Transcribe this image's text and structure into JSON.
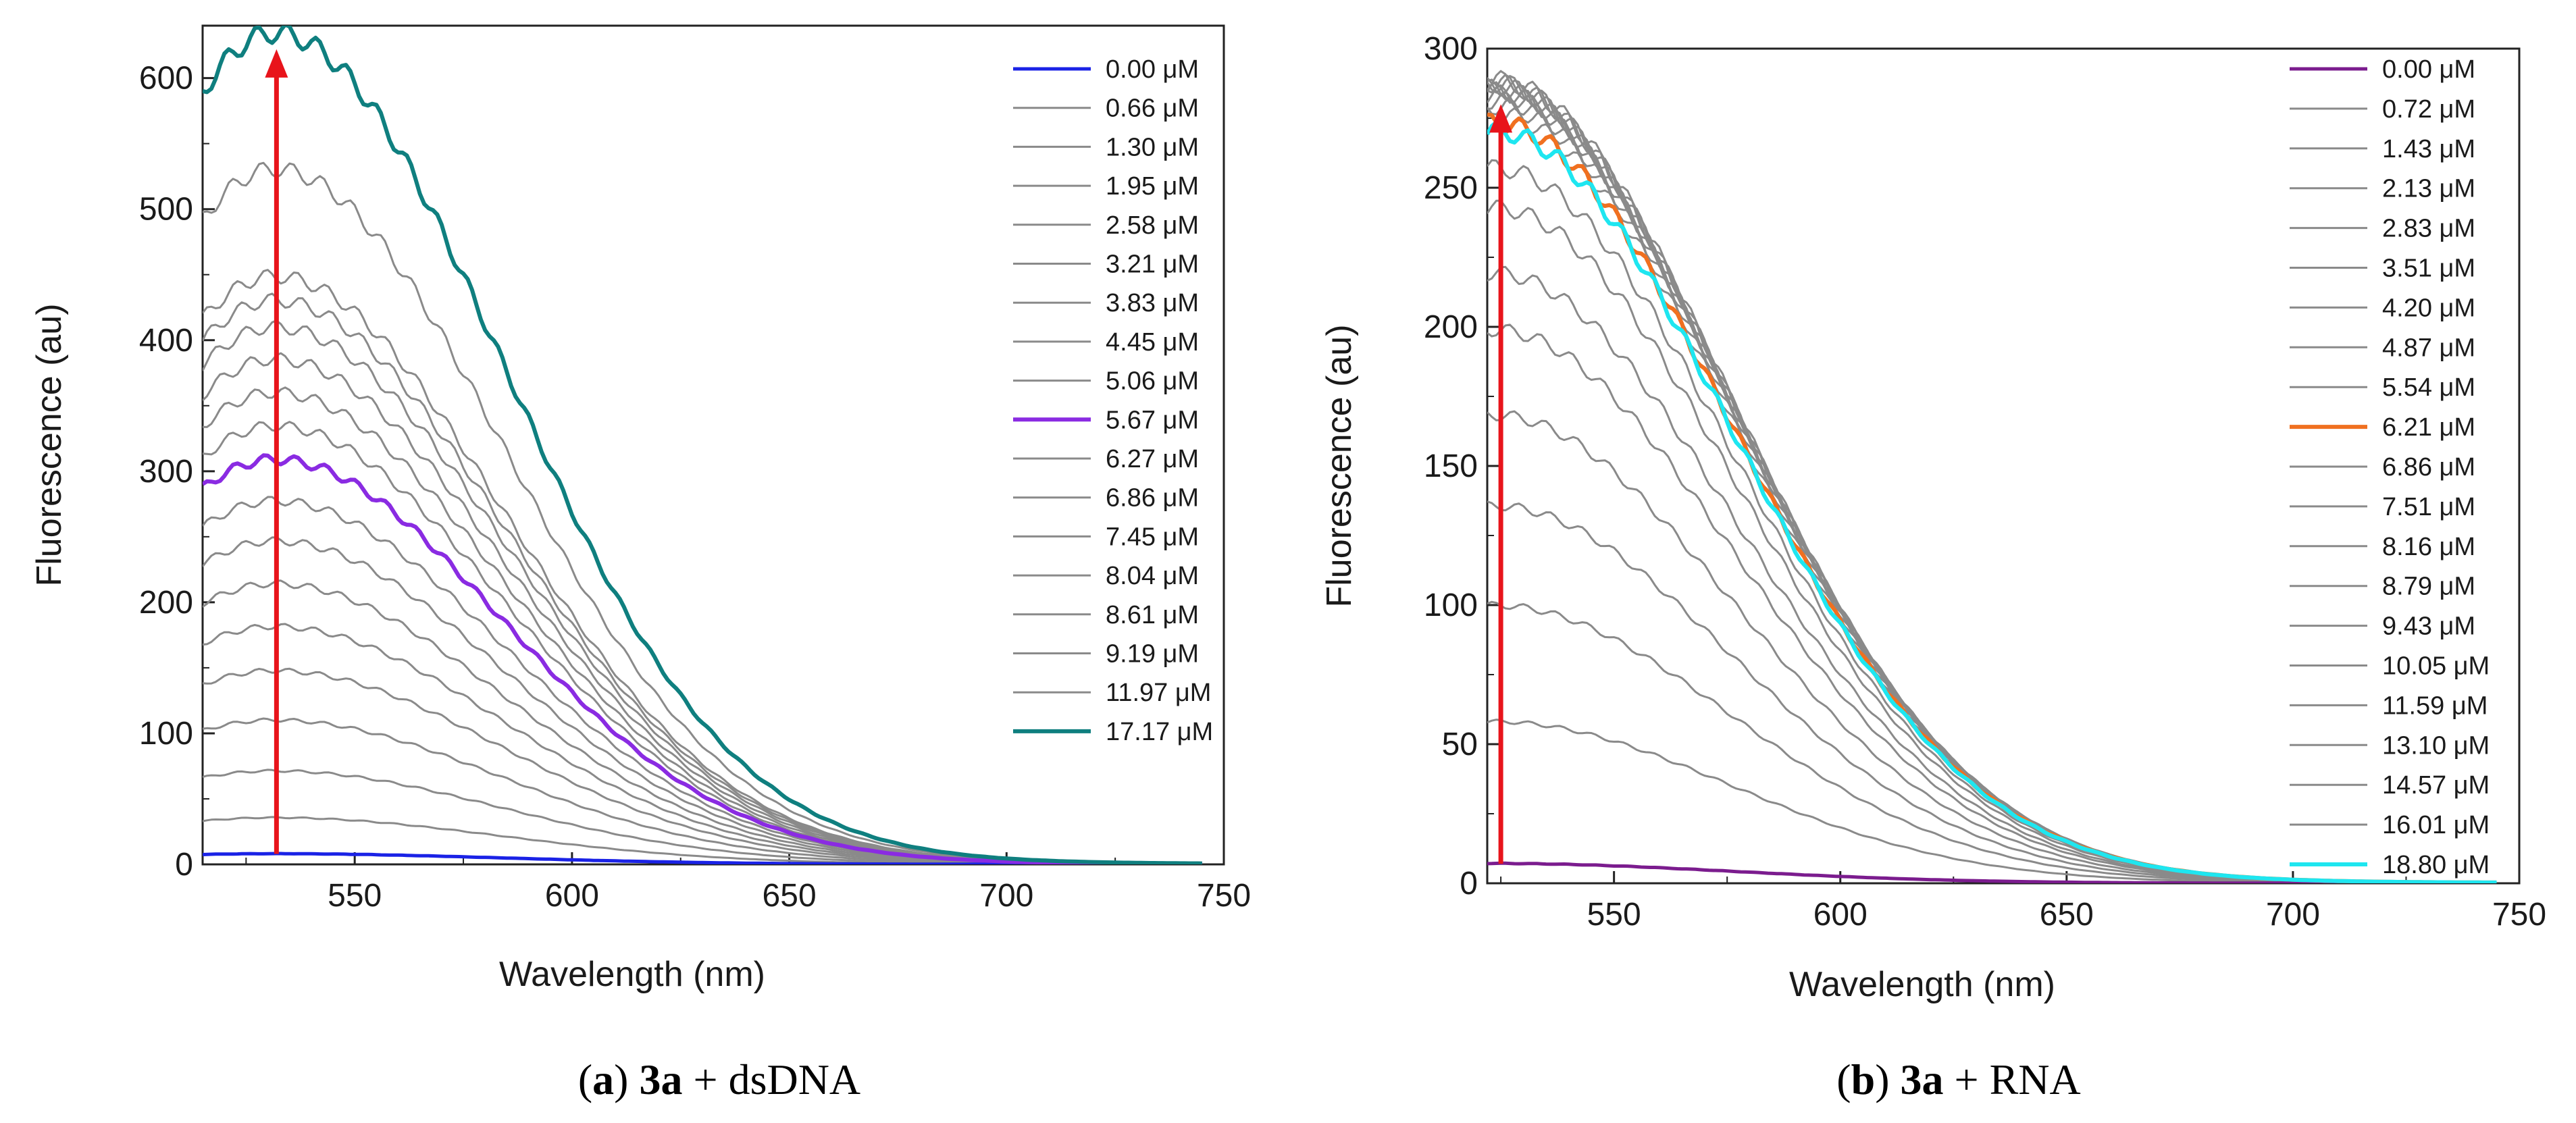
{
  "chart_data": [
    {
      "id": "a",
      "type": "line",
      "xlabel": "Wavelength (nm)",
      "ylabel": "Fluorescence (au)",
      "xlim": [
        515,
        750
      ],
      "ylim": [
        0,
        640
      ],
      "xticks": [
        550,
        600,
        650,
        700,
        750
      ],
      "yticks": [
        0,
        100,
        200,
        300,
        400,
        500,
        600
      ],
      "peak_x": 532,
      "arrow": {
        "x": 532,
        "from": 8,
        "to": 622,
        "color": "#e8141b"
      },
      "caption": {
        "open": "(",
        "letter": "a",
        "close": ") ",
        "compound": "3a",
        "rest": " + dsDNA"
      },
      "series": [
        {
          "name": "0.00 μM",
          "peak": 8,
          "color": "#1a22e6",
          "width": 5
        },
        {
          "name": "0.66 μM",
          "peak": 35,
          "color": "#8a8a8a",
          "width": 3
        },
        {
          "name": "1.30 μM",
          "peak": 70,
          "color": "#8a8a8a",
          "width": 3
        },
        {
          "name": "1.95 μM",
          "peak": 108,
          "color": "#8a8a8a",
          "width": 3
        },
        {
          "name": "2.58 μM",
          "peak": 145,
          "color": "#8a8a8a",
          "width": 3
        },
        {
          "name": "3.21 μM",
          "peak": 178,
          "color": "#8a8a8a",
          "width": 3
        },
        {
          "name": "3.83 μM",
          "peak": 210,
          "color": "#8a8a8a",
          "width": 3
        },
        {
          "name": "4.45 μM",
          "peak": 242,
          "color": "#8a8a8a",
          "width": 3
        },
        {
          "name": "5.06 μM",
          "peak": 272,
          "color": "#8a8a8a",
          "width": 3
        },
        {
          "name": "5.67 μM",
          "peak": 303,
          "color": "#8a2be2",
          "width": 6
        },
        {
          "name": "6.27 μM",
          "peak": 328,
          "color": "#8a8a8a",
          "width": 3
        },
        {
          "name": "6.86 μM",
          "peak": 353,
          "color": "#8a8a8a",
          "width": 3
        },
        {
          "name": "7.45 μM",
          "peak": 378,
          "color": "#8a8a8a",
          "width": 3
        },
        {
          "name": "8.04 μM",
          "peak": 402,
          "color": "#8a8a8a",
          "width": 3
        },
        {
          "name": "8.61 μM",
          "peak": 422,
          "color": "#8a8a8a",
          "width": 3
        },
        {
          "name": "9.19 μM",
          "peak": 440,
          "color": "#8a8a8a",
          "width": 3
        },
        {
          "name": "11.97 μM",
          "peak": 520,
          "color": "#8a8a8a",
          "width": 3
        },
        {
          "name": "17.17 μM",
          "peak": 622,
          "color": "#0f7f7f",
          "width": 6
        }
      ]
    },
    {
      "id": "b",
      "type": "line",
      "xlabel": "Wavelength (nm)",
      "ylabel": "Fluorescence (au)",
      "xlim": [
        522,
        750
      ],
      "ylim": [
        0,
        300
      ],
      "xticks": [
        550,
        600,
        650,
        700,
        750
      ],
      "yticks": [
        0,
        50,
        100,
        150,
        200,
        250,
        300
      ],
      "peak_x": 524,
      "arrow": {
        "x": 525,
        "from": 7,
        "to": 280,
        "color": "#e8141b"
      },
      "caption": {
        "open": "(",
        "letter": "b",
        "close": ") ",
        "compound": "3a",
        "rest": " + RNA"
      },
      "series": [
        {
          "name": "0.00 μM",
          "peak": 7,
          "color": "#7b1c8e",
          "width": 5
        },
        {
          "name": "0.72 μM",
          "peak": 57,
          "color": "#8a8a8a",
          "width": 3
        },
        {
          "name": "1.43 μM",
          "peak": 98,
          "color": "#8a8a8a",
          "width": 3
        },
        {
          "name": "2.13 μM",
          "peak": 133,
          "color": "#8a8a8a",
          "width": 3
        },
        {
          "name": "2.83 μM",
          "peak": 165,
          "color": "#8a8a8a",
          "width": 3
        },
        {
          "name": "3.51 μM",
          "peak": 195,
          "color": "#8a8a8a",
          "width": 3
        },
        {
          "name": "4.20 μM",
          "peak": 215,
          "color": "#8a8a8a",
          "width": 3
        },
        {
          "name": "4.87 μM",
          "peak": 238,
          "color": "#8a8a8a",
          "width": 3
        },
        {
          "name": "5.54 μM",
          "peak": 252,
          "color": "#8a8a8a",
          "width": 3
        },
        {
          "name": "6.21 μM",
          "peak": 268,
          "color": "#f07020",
          "width": 6
        },
        {
          "name": "6.86 μM",
          "peak": 271,
          "color": "#8a8a8a",
          "width": 3
        },
        {
          "name": "7.51 μM",
          "peak": 274,
          "color": "#8a8a8a",
          "width": 3
        },
        {
          "name": "8.16 μM",
          "peak": 276,
          "color": "#8a8a8a",
          "width": 3
        },
        {
          "name": "8.79 μM",
          "peak": 278,
          "color": "#8a8a8a",
          "width": 3
        },
        {
          "name": "9.43 μM",
          "peak": 279,
          "color": "#8a8a8a",
          "width": 3
        },
        {
          "name": "10.05 μM",
          "peak": 280,
          "color": "#8a8a8a",
          "width": 3
        },
        {
          "name": "11.59 μM",
          "peak": 281,
          "color": "#8a8a8a",
          "width": 3
        },
        {
          "name": "13.10 μM",
          "peak": 282,
          "color": "#8a8a8a",
          "width": 3
        },
        {
          "name": "14.57 μM",
          "peak": 282,
          "color": "#8a8a8a",
          "width": 3
        },
        {
          "name": "16.01 μM",
          "peak": 283,
          "color": "#8a8a8a",
          "width": 3
        },
        {
          "name": "18.80 μM",
          "peak": 265,
          "color": "#1ee6f0",
          "width": 6
        }
      ]
    }
  ]
}
